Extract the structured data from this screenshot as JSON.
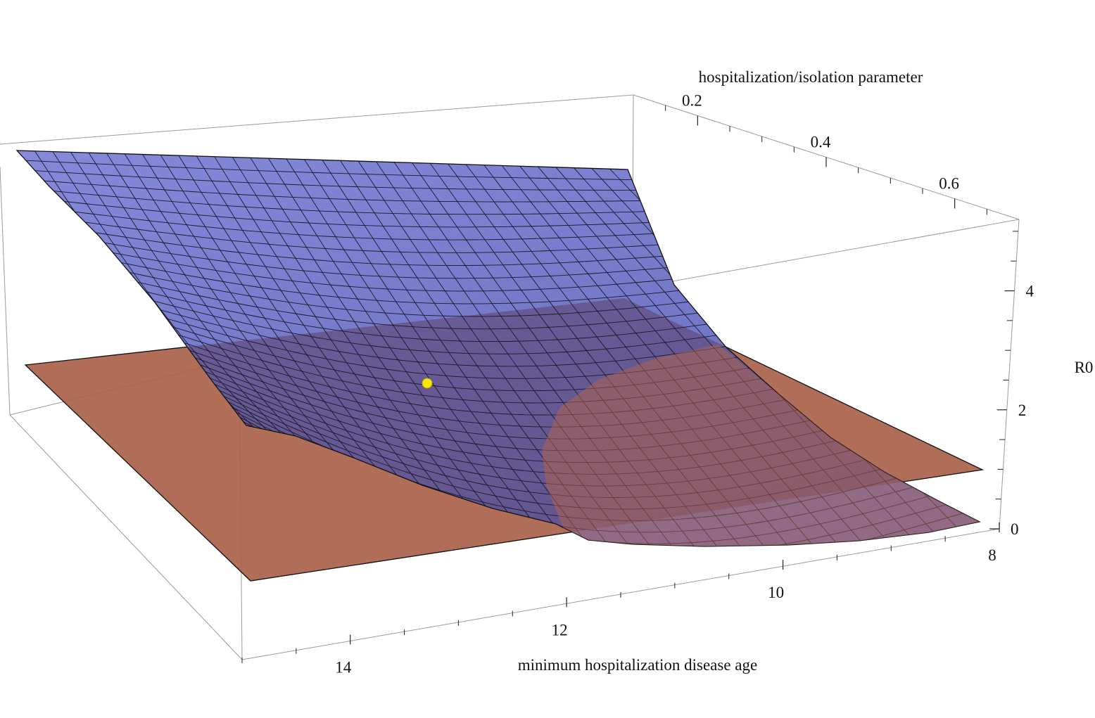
{
  "chart_data": {
    "type": "surface3d",
    "title": "",
    "axes": {
      "x": {
        "label": "minimum hospitalization disease age",
        "range": [
          8,
          15
        ],
        "ticks": [
          8,
          10,
          12,
          14
        ],
        "tick_labels": [
          "8",
          "10",
          "12",
          "14"
        ]
      },
      "y": {
        "label": "hospitalization/isolation parameter",
        "range": [
          0.1,
          0.7
        ],
        "ticks": [
          0.2,
          0.4,
          0.6
        ],
        "tick_labels": [
          "0.2",
          "0.4",
          "0.6"
        ]
      },
      "z": {
        "label": "R0",
        "range": [
          0,
          5.2
        ],
        "ticks": [
          0,
          2,
          4
        ],
        "tick_labels": [
          "0",
          "2",
          "4"
        ]
      }
    },
    "surfaces": [
      {
        "description": "R0 as a function of minimum hospitalization disease age and hospitalization/isolation parameter",
        "color": "#7b80d4",
        "mesh_color": "#1a1a2a",
        "corners": [
          {
            "x": 15,
            "y": 0.1,
            "z": 5.0
          },
          {
            "x": 8,
            "y": 0.1,
            "z": 5.0
          },
          {
            "x": 15,
            "y": 0.7,
            "z": 2.2
          },
          {
            "x": 8,
            "y": 0.7,
            "z": 0.0
          }
        ],
        "min_point": {
          "x": 11.5,
          "y": 0.7,
          "z": 0.0
        }
      },
      {
        "description": "threshold plane R0 = 1",
        "color": "#b06a4f",
        "z": 1
      }
    ],
    "marked_point": {
      "x": 12.3,
      "y": 0.35,
      "z": 2.4,
      "color": "#f5e600"
    },
    "box": true,
    "grid": false,
    "legend": "none"
  }
}
